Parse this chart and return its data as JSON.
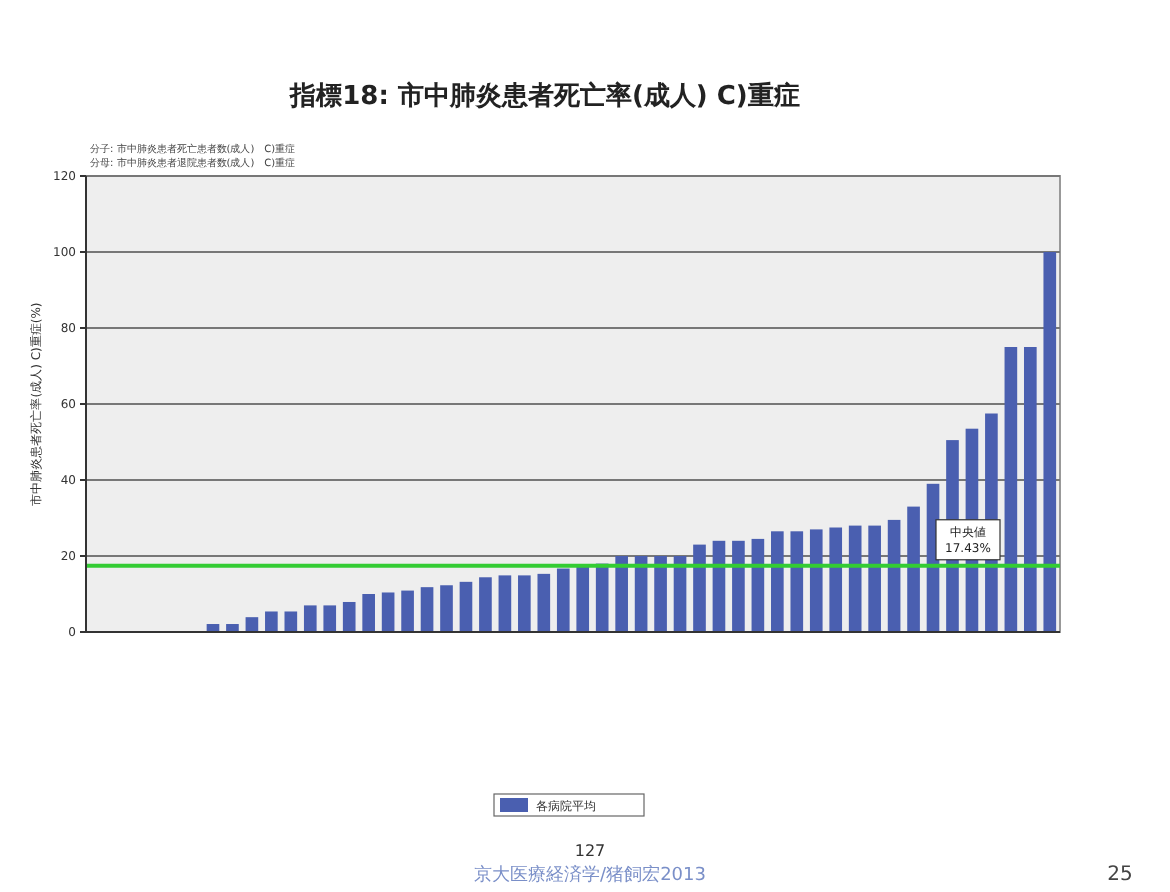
{
  "chart_data": {
    "type": "bar",
    "title": "指標18:  市中肺炎患者死亡率(成人) C)重症",
    "ylabel": "市中肺炎患者死亡率(成人) C)重症(%)",
    "categories": [
      null,
      null,
      null,
      null,
      null,
      null,
      null,
      null,
      null,
      null,
      null,
      null,
      null,
      null,
      null,
      null,
      null,
      null,
      null,
      null,
      null,
      null,
      null,
      null,
      null,
      null,
      null,
      null,
      null,
      null,
      null,
      null,
      null,
      null,
      null,
      null,
      null,
      null,
      null,
      null,
      null,
      null,
      null,
      null,
      null,
      null,
      null,
      null,
      null,
      null
    ],
    "series": [
      {
        "name": "各病院平均",
        "color": "#4a5fb0",
        "values": [
          0,
          0,
          0,
          0,
          0,
          0,
          2.1,
          2.1,
          3.9,
          5.4,
          5.4,
          7,
          7,
          7.9,
          10,
          10.4,
          10.9,
          11.8,
          12.3,
          13.2,
          14.4,
          14.9,
          14.9,
          15.3,
          16.7,
          17.7,
          18,
          20,
          20,
          20,
          20,
          23,
          24,
          24,
          24.5,
          26.5,
          26.5,
          27,
          27.5,
          28,
          28,
          29.5,
          33,
          39,
          50.5,
          53.5,
          57.5,
          75,
          75,
          100
        ]
      }
    ],
    "ylim": [
      0,
      120
    ],
    "yticks": [
      0,
      20,
      40,
      60,
      80,
      100,
      120
    ],
    "grid": "y",
    "legend": "bottom",
    "ref_lines": [
      {
        "axis": "y",
        "value": 17.43,
        "label": "中央値 17.43%",
        "color": "#33cc33"
      }
    ],
    "annotations": [
      "分子: 市中肺炎患者死亡患者数(成人)　C)重症",
      "分母: 市中肺炎患者退院患者数(成人)　C)重症",
      "127",
      "京大医療経済学/猪飼宏2013",
      "25"
    ]
  }
}
